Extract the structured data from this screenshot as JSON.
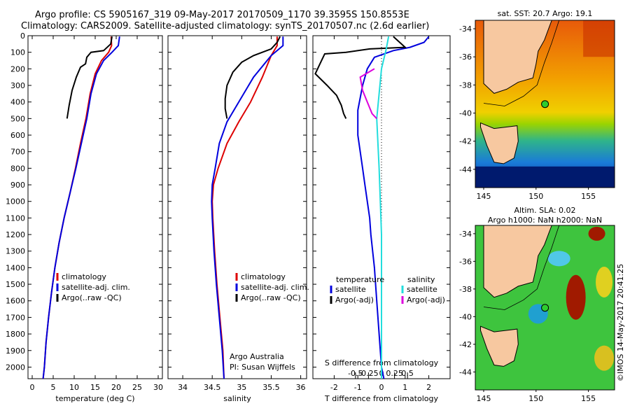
{
  "header": {
    "line1": "Argo profile: CS 5905167_319 09-May-2017 20170509_1170 39.3595S 150.8553E",
    "line2": "Climatology: CARS2009. Satellite-adjusted climatology: synTS_20170507.nc (2.6d earlier)"
  },
  "colors": {
    "climatology": "#dd0000",
    "satellite": "#0000dd",
    "argo": "#000000",
    "sal_satellite": "#22dddd",
    "sal_argo": "#dd00dd"
  },
  "chart_data": [
    {
      "type": "line",
      "name": "temperature-panel",
      "xlabel": "temperature (deg C)",
      "xlim": [
        -1,
        31
      ],
      "ylim": [
        2070,
        0
      ],
      "xticks": [
        0,
        5,
        10,
        15,
        20,
        25,
        30
      ],
      "yticks": [
        0,
        100,
        200,
        300,
        400,
        500,
        600,
        700,
        800,
        900,
        1000,
        1100,
        1200,
        1300,
        1400,
        1500,
        1600,
        1700,
        1800,
        1900,
        2000
      ],
      "legend": [
        "climatology",
        "satellite-adj. clim.",
        "Argo(..raw -QC)"
      ],
      "series": [
        {
          "name": "climatology",
          "color": "#dd0000",
          "points": [
            [
              18.8,
              5
            ],
            [
              18.9,
              60
            ],
            [
              18.2,
              100
            ],
            [
              16.5,
              150
            ],
            [
              15,
              230
            ],
            [
              13.8,
              350
            ],
            [
              12.8,
              500
            ],
            [
              11.5,
              650
            ],
            [
              10.3,
              800
            ],
            [
              9,
              950
            ],
            [
              7.6,
              1100
            ],
            [
              6.4,
              1250
            ],
            [
              5.4,
              1400
            ],
            [
              4.6,
              1550
            ],
            [
              3.9,
              1700
            ],
            [
              3.3,
              1850
            ],
            [
              2.9,
              2000
            ],
            [
              2.6,
              2070
            ]
          ]
        },
        {
          "name": "satellite-adj. clim.",
          "color": "#0000dd",
          "points": [
            [
              20.8,
              5
            ],
            [
              20.5,
              60
            ],
            [
              19,
              100
            ],
            [
              17,
              150
            ],
            [
              15.3,
              230
            ],
            [
              14,
              350
            ],
            [
              13,
              500
            ],
            [
              11.7,
              650
            ],
            [
              10.4,
              800
            ],
            [
              9,
              950
            ],
            [
              7.6,
              1100
            ],
            [
              6.4,
              1250
            ],
            [
              5.4,
              1400
            ],
            [
              4.6,
              1550
            ],
            [
              3.9,
              1700
            ],
            [
              3.3,
              1850
            ],
            [
              2.9,
              2000
            ],
            [
              2.6,
              2070
            ]
          ]
        },
        {
          "name": "Argo(..raw -QC)",
          "color": "#000000",
          "points": [
            [
              19,
              5
            ],
            [
              18.7,
              50
            ],
            [
              17,
              90
            ],
            [
              14,
              100
            ],
            [
              13,
              130
            ],
            [
              12.7,
              170
            ],
            [
              11.5,
              190
            ],
            [
              10.5,
              250
            ],
            [
              9.5,
              330
            ],
            [
              8.8,
              420
            ],
            [
              8.3,
              500
            ]
          ]
        }
      ]
    },
    {
      "type": "line",
      "name": "salinity-panel",
      "xlabel": "salinity",
      "xlim": [
        33.75,
        36.1
      ],
      "ylim": [
        2070,
        0
      ],
      "xticks": [
        34,
        34.5,
        35,
        35.5,
        36
      ],
      "legend": [
        "climatology",
        "satellite-adj. clim.",
        "Argo(..raw -QC)"
      ],
      "annotation": [
        "Argo Australia",
        "PI: Susan Wijffels"
      ],
      "series": [
        {
          "name": "climatology",
          "color": "#dd0000",
          "points": [
            [
              35.6,
              5
            ],
            [
              35.6,
              60
            ],
            [
              35.5,
              120
            ],
            [
              35.35,
              250
            ],
            [
              35.15,
              400
            ],
            [
              34.95,
              520
            ],
            [
              34.75,
              650
            ],
            [
              34.6,
              800
            ],
            [
              34.52,
              900
            ],
            [
              34.5,
              1000
            ],
            [
              34.51,
              1100
            ],
            [
              34.54,
              1300
            ],
            [
              34.58,
              1500
            ],
            [
              34.63,
              1700
            ],
            [
              34.68,
              1900
            ],
            [
              34.7,
              2070
            ]
          ]
        },
        {
          "name": "satellite-adj. clim.",
          "color": "#0000dd",
          "points": [
            [
              35.7,
              5
            ],
            [
              35.7,
              60
            ],
            [
              35.5,
              120
            ],
            [
              35.2,
              250
            ],
            [
              34.95,
              400
            ],
            [
              34.75,
              520
            ],
            [
              34.62,
              650
            ],
            [
              34.55,
              800
            ],
            [
              34.5,
              900
            ],
            [
              34.49,
              1000
            ],
            [
              34.5,
              1100
            ],
            [
              34.53,
              1300
            ],
            [
              34.57,
              1500
            ],
            [
              34.62,
              1700
            ],
            [
              34.67,
              1900
            ],
            [
              34.7,
              2070
            ]
          ]
        },
        {
          "name": "Argo(..raw -QC)",
          "color": "#000000",
          "points": [
            [
              35.65,
              5
            ],
            [
              35.6,
              40
            ],
            [
              35.5,
              80
            ],
            [
              35.2,
              120
            ],
            [
              35,
              160
            ],
            [
              34.85,
              220
            ],
            [
              34.75,
              300
            ],
            [
              34.72,
              380
            ],
            [
              34.72,
              440
            ],
            [
              34.75,
              500
            ]
          ]
        }
      ]
    },
    {
      "type": "line",
      "name": "difference-panel",
      "xlabel": "T difference from climatology",
      "x2label": "S difference from climatology",
      "xlim": [
        -2.9,
        2.9
      ],
      "ylim": [
        2070,
        0
      ],
      "xticks": [
        -2,
        -1,
        0,
        1,
        2
      ],
      "x2ticks": [
        -0.5,
        -0.25,
        0,
        0.25,
        0.5
      ],
      "legend_headers": [
        "temperature",
        "salinity"
      ],
      "legend": [
        "satellite",
        "Argo(-adj)",
        "satellite",
        "Argo(-adj)"
      ],
      "series": [
        {
          "name": "T satellite",
          "color": "#0000dd",
          "points": [
            [
              2,
              5
            ],
            [
              1.8,
              40
            ],
            [
              1.2,
              70
            ],
            [
              0.5,
              90
            ],
            [
              -0.3,
              130
            ],
            [
              -0.6,
              200
            ],
            [
              -0.8,
              300
            ],
            [
              -1,
              450
            ],
            [
              -1,
              600
            ],
            [
              -0.9,
              700
            ],
            [
              -0.8,
              800
            ],
            [
              -0.7,
              900
            ],
            [
              -0.6,
              1000
            ],
            [
              -0.5,
              1100
            ],
            [
              -0.45,
              1200
            ],
            [
              -0.3,
              1400
            ],
            [
              -0.2,
              1600
            ],
            [
              -0.1,
              1800
            ],
            [
              0,
              2000
            ],
            [
              0.1,
              2070
            ]
          ]
        },
        {
          "name": "T Argo(-adj)",
          "color": "#000000",
          "points": [
            [
              0.5,
              5
            ],
            [
              1,
              70
            ],
            [
              -0.5,
              80
            ],
            [
              -1.5,
              100
            ],
            [
              -2.4,
              110
            ],
            [
              -2.6,
              170
            ],
            [
              -2.8,
              230
            ],
            [
              -2.3,
              300
            ],
            [
              -2.1,
              330
            ],
            [
              -1.9,
              360
            ],
            [
              -1.7,
              420
            ],
            [
              -1.6,
              470
            ],
            [
              -1.5,
              500
            ]
          ]
        },
        {
          "name": "S satellite",
          "color": "#22dddd",
          "points": [
            [
              0.3,
              5
            ],
            [
              0.2,
              80
            ],
            [
              0,
              200
            ],
            [
              -0.1,
              350
            ],
            [
              -0.2,
              500
            ],
            [
              -0.15,
              650
            ],
            [
              -0.1,
              800
            ],
            [
              -0.05,
              1000
            ],
            [
              0,
              1200
            ],
            [
              0,
              1500
            ],
            [
              0,
              2070
            ]
          ]
        },
        {
          "name": "S Argo(-adj)",
          "color": "#dd00dd",
          "points": [
            [
              -0.3,
              200
            ],
            [
              -0.9,
              250
            ],
            [
              -0.8,
              330
            ],
            [
              -0.6,
              400
            ],
            [
              -0.4,
              470
            ],
            [
              -0.2,
              500
            ]
          ]
        }
      ]
    },
    {
      "type": "heatmap",
      "name": "sst-map",
      "title": "sat. SST: 20.7 Argo: 19.1",
      "xticks": [
        145,
        150,
        155
      ],
      "yticks": [
        -34,
        -36,
        -38,
        -40,
        -42,
        -44
      ]
    },
    {
      "type": "heatmap",
      "name": "sla-map",
      "title": "Altim. SLA: 0.02",
      "subtitle": "Argo h1000: NaN h2000: NaN",
      "xticks": [
        145,
        150,
        155
      ],
      "yticks": [
        -34,
        -36,
        -38,
        -40,
        -42,
        -44
      ]
    }
  ],
  "footer": {
    "credit": "©IMOS 14-May-2017 20:41:25"
  }
}
